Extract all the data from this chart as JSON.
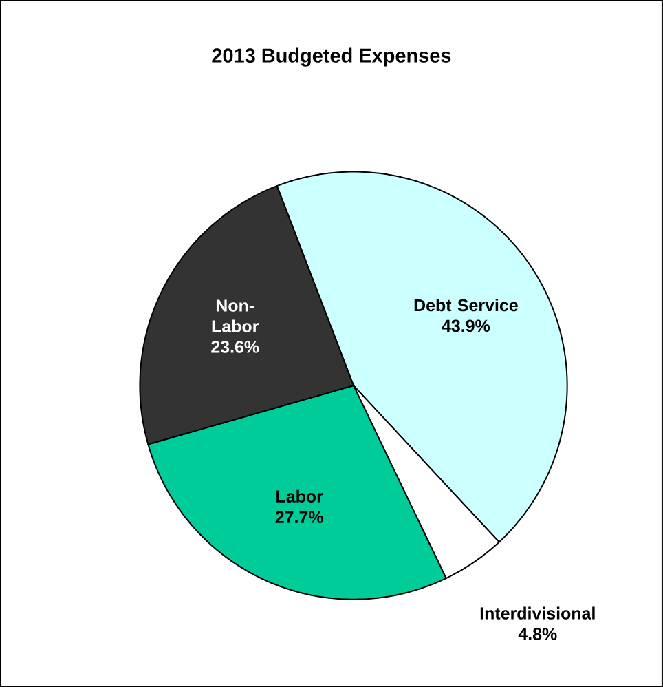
{
  "chart_data": {
    "type": "pie",
    "title": "2013 Budgeted Expenses",
    "categories": [
      "Debt Service",
      "Interdivisional",
      "Labor",
      "Non-Labor"
    ],
    "values": [
      43.9,
      4.8,
      27.7,
      23.6
    ],
    "colors": [
      "#ccffff",
      "#ffffff",
      "#00cc99",
      "#333333"
    ],
    "value_labels": [
      "43.9%",
      "4.8%",
      "27.7%",
      "23.6%"
    ]
  }
}
